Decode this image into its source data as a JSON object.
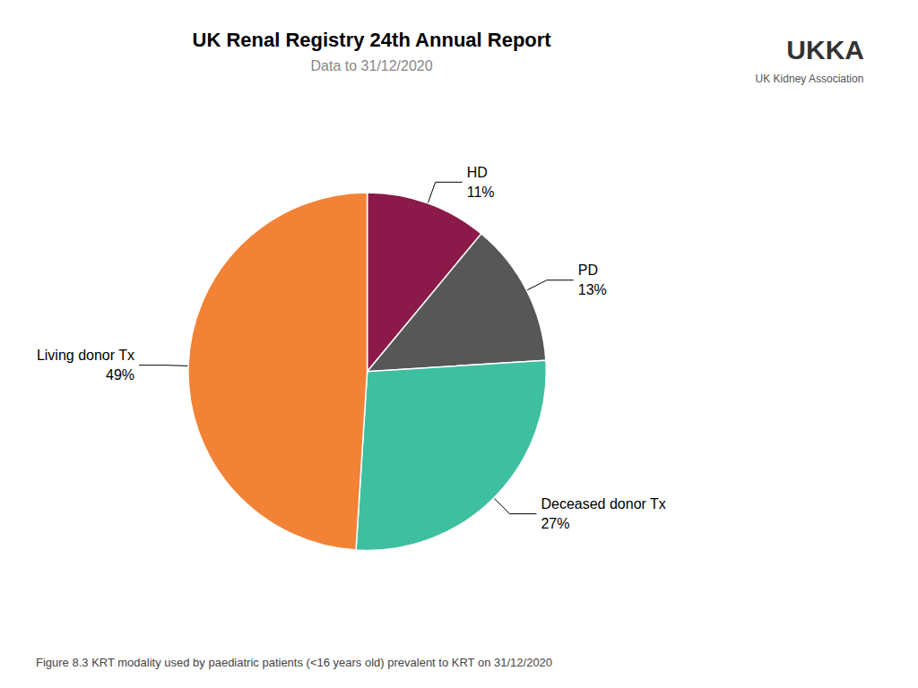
{
  "chart_data": {
    "type": "pie",
    "title": "UK Renal Registry 24th Annual Report",
    "subtitle": "Data to 31/12/2020",
    "caption": "Figure 8.3 KRT modality used by paediatric patients (<16 years old) prevalent to KRT on 31/12/2020",
    "categories": [
      "HD",
      "PD",
      "Deceased donor Tx",
      "Living donor Tx"
    ],
    "values": [
      11,
      13,
      27,
      49
    ],
    "value_labels": [
      "11%",
      "13%",
      "27%",
      "49%"
    ],
    "colors": [
      "#8B1A4A",
      "#575757",
      "#3DBFA0",
      "#F28235"
    ],
    "data_labels": true,
    "annotations": [
      "UKKA",
      "UK Kidney Association"
    ]
  }
}
